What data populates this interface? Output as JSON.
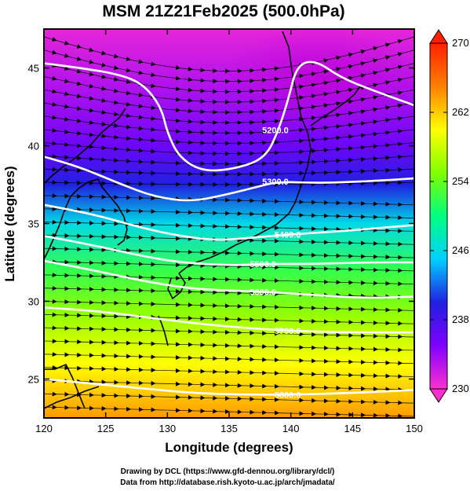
{
  "chart_data": {
    "type": "heatmap",
    "title": "MSM 21Z21Feb2025 (500.0hPa)",
    "xlabel": "Longitude (degrees)",
    "ylabel": "Latitude  (degrees)",
    "xlim": [
      120,
      150
    ],
    "ylim": [
      22.5,
      47.5
    ],
    "x_ticks": [
      "120",
      "125",
      "130",
      "135",
      "140",
      "145",
      "150"
    ],
    "y_ticks": [
      "25",
      "30",
      "35",
      "40",
      "45"
    ],
    "colorbar": {
      "min": 230,
      "max": 270,
      "ticks": [
        "230",
        "238",
        "246",
        "254",
        "262",
        "270"
      ],
      "colors": [
        "#ff30d0",
        "#8000ff",
        "#2020e0",
        "#00d0ff",
        "#00ff80",
        "#80ff00",
        "#ffff00",
        "#ff8000",
        "#ff2000"
      ]
    },
    "temperature_profile": [
      {
        "lat": 47.5,
        "value": 231
      },
      {
        "lat": 44.0,
        "value": 233
      },
      {
        "lat": 40.0,
        "value": 236
      },
      {
        "lat": 37.5,
        "value": 240
      },
      {
        "lat": 35.0,
        "value": 246
      },
      {
        "lat": 32.0,
        "value": 252
      },
      {
        "lat": 29.0,
        "value": 256
      },
      {
        "lat": 26.0,
        "value": 260
      },
      {
        "lat": 22.5,
        "value": 264
      }
    ],
    "contours": [
      {
        "label": "5200.0",
        "points": [
          [
            120,
            45.3
          ],
          [
            123,
            45.0
          ],
          [
            126,
            44.6
          ],
          [
            128,
            44.0
          ],
          [
            129.5,
            42.5
          ],
          [
            130,
            40.8
          ],
          [
            131,
            39.2
          ],
          [
            133,
            38.3
          ],
          [
            136,
            38.6
          ],
          [
            138,
            39.3
          ],
          [
            139,
            41.0
          ],
          [
            139.8,
            43.0
          ],
          [
            140.5,
            45.2
          ],
          [
            142,
            45.5
          ],
          [
            144,
            44.4
          ],
          [
            146.5,
            43.6
          ],
          [
            150,
            42.6
          ]
        ]
      },
      {
        "label": "5300.0",
        "points": [
          [
            120,
            39.3
          ],
          [
            123,
            38.6
          ],
          [
            126,
            37.6
          ],
          [
            129,
            36.7
          ],
          [
            132,
            36.4
          ],
          [
            135,
            36.9
          ],
          [
            137,
            37.3
          ],
          [
            139,
            37.7
          ],
          [
            142,
            37.6
          ],
          [
            146,
            37.7
          ],
          [
            150,
            37.9
          ]
        ]
      },
      {
        "label": "5400.0",
        "points": [
          [
            120,
            36.2
          ],
          [
            124,
            35.6
          ],
          [
            128,
            34.7
          ],
          [
            131,
            34.2
          ],
          [
            134,
            33.9
          ],
          [
            137,
            34.1
          ],
          [
            140,
            34.3
          ],
          [
            144,
            34.5
          ],
          [
            150,
            34.9
          ]
        ]
      },
      {
        "label": "5500.0",
        "points": [
          [
            120,
            34.2
          ],
          [
            124,
            33.6
          ],
          [
            128,
            32.9
          ],
          [
            131,
            32.5
          ],
          [
            135,
            32.3
          ],
          [
            138,
            32.4
          ],
          [
            142,
            32.4
          ],
          [
            146,
            32.5
          ],
          [
            150,
            32.5
          ]
        ]
      },
      {
        "label": "5600.0",
        "points": [
          [
            120,
            32.6
          ],
          [
            124,
            32.0
          ],
          [
            128,
            31.3
          ],
          [
            132,
            30.8
          ],
          [
            135,
            30.7
          ],
          [
            138,
            30.6
          ],
          [
            142,
            30.4
          ],
          [
            146,
            30.2
          ],
          [
            150,
            30.3
          ]
        ]
      },
      {
        "label": "5700.0",
        "points": [
          [
            120,
            29.6
          ],
          [
            124,
            29.4
          ],
          [
            128,
            29.0
          ],
          [
            132,
            28.6
          ],
          [
            136,
            28.3
          ],
          [
            140,
            28.1
          ],
          [
            144,
            28.0
          ],
          [
            150,
            28.0
          ]
        ]
      },
      {
        "label": "5800.0",
        "points": [
          [
            120,
            25.0
          ],
          [
            124,
            24.7
          ],
          [
            128,
            24.4
          ],
          [
            132,
            24.1
          ],
          [
            136,
            24.0
          ],
          [
            140,
            24.0
          ],
          [
            145,
            24.1
          ],
          [
            150,
            24.3
          ]
        ]
      }
    ]
  },
  "credits": {
    "line1": "Drawing by DCL (https://www.gfd-dennou.org/library/dcl/)",
    "line2": "Data from http://database.rish.kyoto-u.ac.jp/arch/jmadata/"
  }
}
